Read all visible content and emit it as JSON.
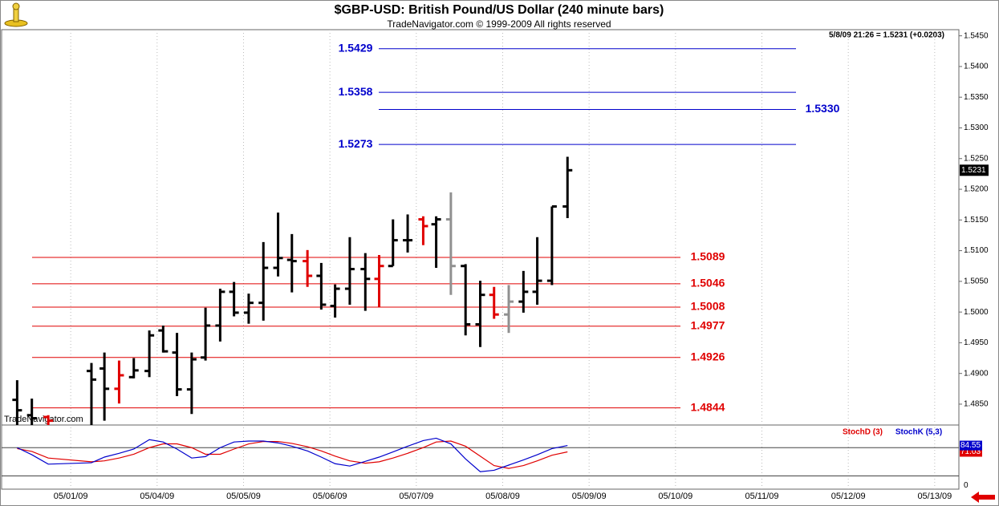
{
  "chart_data": [
    {
      "type": "ohlc",
      "title": "$GBP-USD:  British Pound/US Dollar  (240 minute bars)",
      "subtitle": "TradeNavigator.com © 1999-2009 All rights reserved",
      "watermark": "TradeNavigator.com",
      "info": "5/8/09 21:26 = 1.5231 (+0.0203)",
      "last_value": 1.5231,
      "x": [
        -0.62,
        -0.45,
        -0.26,
        0.24,
        0.39,
        0.56,
        0.73,
        0.91,
        1.07,
        1.23,
        1.4,
        1.56,
        1.73,
        1.89,
        2.06,
        2.23,
        2.4,
        2.56,
        2.74,
        2.9,
        3.06,
        3.23,
        3.41,
        3.57,
        3.73,
        3.9,
        4.08,
        4.23,
        4.4,
        4.57,
        4.74,
        4.9,
        5.07,
        5.24,
        5.4,
        5.57,
        5.75
      ],
      "open": [
        1.4857,
        1.4832,
        1.4829,
        1.4904,
        1.4908,
        1.4875,
        1.4894,
        1.4904,
        1.497,
        1.4934,
        1.4874,
        1.4926,
        1.4978,
        1.5033,
        1.4999,
        1.5015,
        1.5072,
        1.5085,
        1.5083,
        1.5059,
        1.501,
        1.5038,
        1.507,
        1.5054,
        1.5075,
        1.5117,
        1.5151,
        1.5143,
        1.5151,
        1.5075,
        1.498,
        1.5028,
        1.4996,
        1.5017,
        1.5033,
        1.5051,
        1.5172
      ],
      "high": [
        1.4889,
        1.4859,
        1.4832,
        1.4917,
        1.4934,
        1.4921,
        1.4925,
        1.497,
        1.4978,
        1.4966,
        1.4934,
        1.5007,
        1.5038,
        1.5049,
        1.503,
        1.5114,
        1.5162,
        1.5127,
        1.5101,
        1.508,
        1.5045,
        1.5122,
        1.5096,
        1.5093,
        1.5151,
        1.5159,
        1.5156,
        1.5156,
        1.5195,
        1.5078,
        1.5051,
        1.5041,
        1.5044,
        1.5067,
        1.5122,
        1.5172,
        1.5253
      ],
      "low": [
        1.4816,
        1.4816,
        1.4816,
        1.4816,
        1.4823,
        1.4851,
        1.4892,
        1.4894,
        1.4934,
        1.4863,
        1.4834,
        1.4921,
        1.4952,
        1.4993,
        1.4981,
        1.4986,
        1.5058,
        1.5032,
        1.5041,
        1.5004,
        1.4991,
        1.5012,
        1.5002,
        1.5008,
        1.5075,
        1.5097,
        1.5109,
        1.5072,
        1.5028,
        1.4962,
        1.4943,
        1.4989,
        1.4966,
        1.4999,
        1.5012,
        1.5044,
        1.5153
      ],
      "close": [
        1.484,
        1.4827,
        1.4823,
        1.489,
        1.4875,
        1.4897,
        1.4905,
        1.4962,
        1.4936,
        1.4874,
        1.4923,
        1.4978,
        1.5033,
        1.4999,
        1.5015,
        1.5072,
        1.5088,
        1.5083,
        1.5059,
        1.5012,
        1.5038,
        1.507,
        1.5054,
        1.5075,
        1.5117,
        1.5117,
        1.514,
        1.5151,
        1.5075,
        1.498,
        1.5028,
        1.4996,
        1.5017,
        1.5033,
        1.5051,
        1.5172,
        1.5231
      ],
      "bar_colors": [
        "#000000",
        "#000000",
        "#e00000",
        "#000000",
        "#000000",
        "#e00000",
        "#000000",
        "#000000",
        "#000000",
        "#000000",
        "#000000",
        "#000000",
        "#000000",
        "#000000",
        "#000000",
        "#000000",
        "#000000",
        "#000000",
        "#e00000",
        "#000000",
        "#000000",
        "#000000",
        "#000000",
        "#e00000",
        "#000000",
        "#000000",
        "#e00000",
        "#000000",
        "#909090",
        "#000000",
        "#000000",
        "#e00000",
        "#909090",
        "#000000",
        "#000000",
        "#000000",
        "#000000"
      ],
      "xlim": [
        -0.8,
        10.28
      ],
      "xticks": [
        {
          "value": 0,
          "label": "05/01/09"
        },
        {
          "value": 1,
          "label": "05/04/09"
        },
        {
          "value": 2,
          "label": "05/05/09"
        },
        {
          "value": 3,
          "label": "05/06/09"
        },
        {
          "value": 4,
          "label": "05/07/09"
        },
        {
          "value": 5,
          "label": "05/08/09"
        },
        {
          "value": 6,
          "label": "05/09/09"
        },
        {
          "value": 7,
          "label": "05/10/09"
        },
        {
          "value": 8,
          "label": "05/11/09"
        },
        {
          "value": 9,
          "label": "05/12/09"
        },
        {
          "value": 10,
          "label": "05/13/09"
        }
      ],
      "ylim": [
        1.4816,
        1.546
      ],
      "yticks": [
        {
          "value": 1.545,
          "label": "1.5450"
        },
        {
          "value": 1.54,
          "label": "1.5400"
        },
        {
          "value": 1.535,
          "label": "1.5350"
        },
        {
          "value": 1.53,
          "label": "1.5300"
        },
        {
          "value": 1.525,
          "label": "1.5250"
        },
        {
          "value": 1.52,
          "label": "1.5200"
        },
        {
          "value": 1.515,
          "label": "1.5150"
        },
        {
          "value": 1.51,
          "label": "1.5100"
        },
        {
          "value": 1.505,
          "label": "1.5050"
        },
        {
          "value": 1.5,
          "label": "1.5000"
        },
        {
          "value": 1.495,
          "label": "1.4950"
        },
        {
          "value": 1.49,
          "label": "1.4900"
        },
        {
          "value": 1.485,
          "label": "1.4850"
        }
      ],
      "levels": [
        {
          "color": "#0000cc",
          "values": [
            1.5429,
            1.5358,
            {
              "value": 1.533,
              "label": "1.5330"
            },
            1.5273
          ],
          "label_sides": [
            "left",
            "left",
            "right",
            "left"
          ]
        },
        {
          "color": "#e00000",
          "values": [
            1.5089,
            1.5046,
            1.5008,
            1.4977,
            1.4926,
            1.4844
          ],
          "label_sides": [
            "right",
            "right",
            "right",
            "right",
            "right",
            "right"
          ]
        }
      ]
    },
    {
      "type": "line",
      "x": [
        -0.62,
        -0.45,
        -0.26,
        0.24,
        0.39,
        0.56,
        0.73,
        0.91,
        1.07,
        1.23,
        1.4,
        1.56,
        1.73,
        1.89,
        2.06,
        2.23,
        2.4,
        2.56,
        2.74,
        2.9,
        3.06,
        3.23,
        3.41,
        3.57,
        3.73,
        3.9,
        4.08,
        4.23,
        4.4,
        4.57,
        4.74,
        4.9,
        5.07,
        5.24,
        5.4,
        5.57,
        5.75
      ],
      "xlim": [
        -0.8,
        10.28
      ],
      "ylim": [
        -8,
        128
      ],
      "yticks": [
        0
      ],
      "levels": [
        20,
        80
      ],
      "series": [
        {
          "name": "StochD (3)",
          "color": "#e00000",
          "values": [
            78,
            72,
            58,
            50,
            52,
            58,
            66,
            80,
            88,
            88,
            80,
            66,
            66,
            77,
            88,
            93,
            93,
            89,
            82,
            73,
            62,
            52,
            47,
            50,
            58,
            68,
            80,
            92,
            94,
            83,
            62,
            42,
            36,
            42,
            52,
            64,
            71.03
          ]
        },
        {
          "name": "StochK (5,3)",
          "color": "#0000cc",
          "values": [
            80,
            65,
            45,
            48,
            60,
            68,
            77,
            97,
            92,
            77,
            58,
            61,
            80,
            92,
            94,
            94,
            90,
            83,
            73,
            60,
            46,
            41,
            51,
            60,
            71,
            83,
            95,
            100,
            88,
            56,
            29,
            32,
            43,
            54,
            65,
            78,
            84.55
          ]
        }
      ]
    }
  ]
}
